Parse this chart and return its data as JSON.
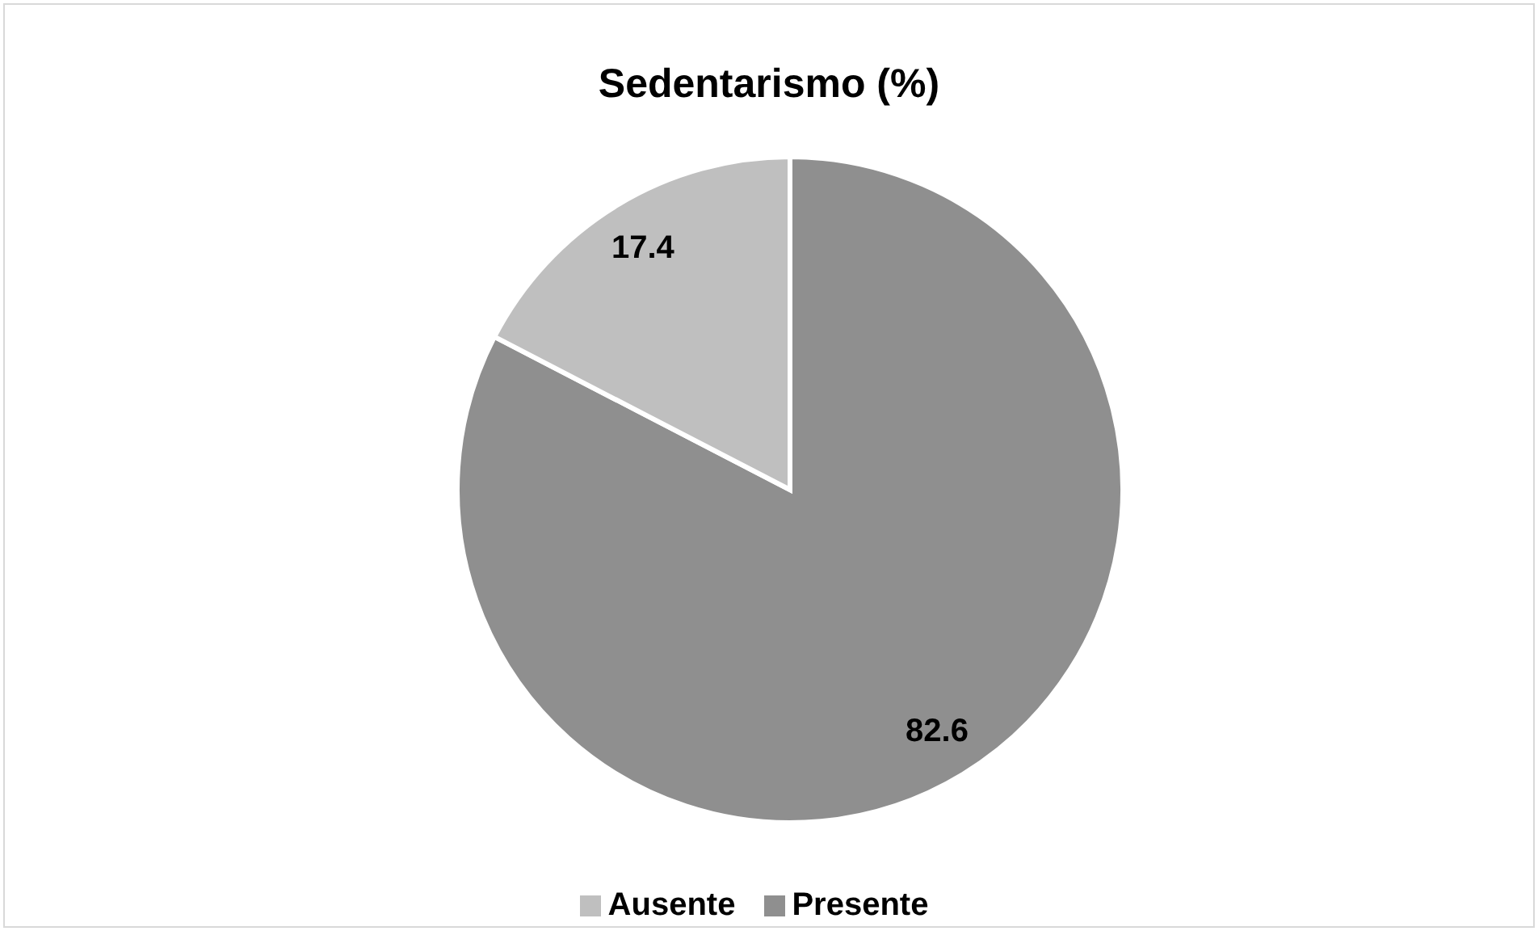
{
  "chart_data": {
    "type": "pie",
    "title": "Sedentarismo (%)",
    "categories": [
      "Presente",
      "Ausente"
    ],
    "values": [
      82.6,
      17.4
    ],
    "colors": [
      "#8f8f8f",
      "#bfbfbf"
    ],
    "data_labels": true,
    "legend": "bottom"
  }
}
